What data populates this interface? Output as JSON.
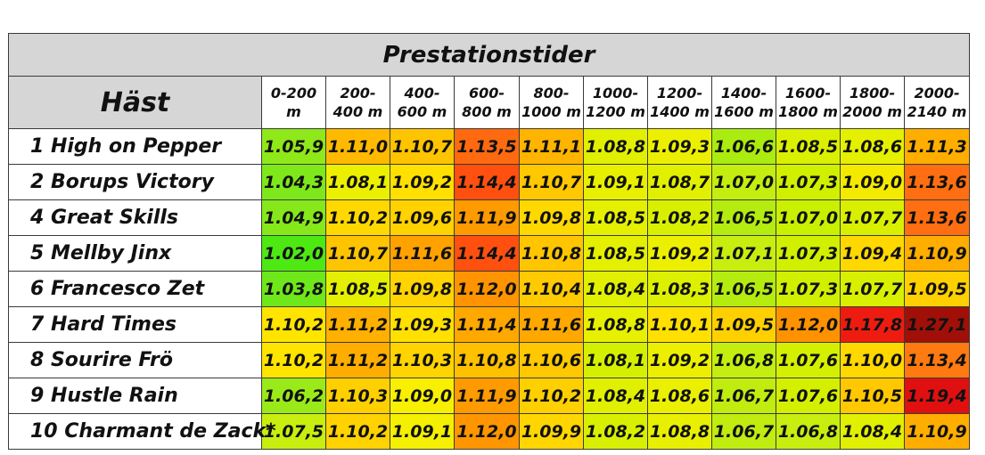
{
  "title": "Prestationstider",
  "horse_header": "Häst",
  "segments": [
    [
      "0-200",
      "m"
    ],
    [
      "200-",
      "400 m"
    ],
    [
      "400-",
      "600 m"
    ],
    [
      "600-",
      "800 m"
    ],
    [
      "800-",
      "1000 m"
    ],
    [
      "1000-",
      "1200 m"
    ],
    [
      "1200-",
      "1400 m"
    ],
    [
      "1400-",
      "1600 m"
    ],
    [
      "1600-",
      "1800 m"
    ],
    [
      "1800-",
      "2000 m"
    ],
    [
      "2000-",
      "2140 m"
    ]
  ],
  "rows": [
    {
      "horse": "1 High on Pepper",
      "times": [
        "1.05,9",
        "1.11,0",
        "1.10,7",
        "1.13,5",
        "1.11,1",
        "1.08,8",
        "1.09,3",
        "1.06,6",
        "1.08,5",
        "1.08,6",
        "1.11,3"
      ]
    },
    {
      "horse": "2 Borups Victory",
      "times": [
        "1.04,3",
        "1.08,1",
        "1.09,2",
        "1.14,4",
        "1.10,7",
        "1.09,1",
        "1.08,7",
        "1.07,0",
        "1.07,3",
        "1.09,0",
        "1.13,6"
      ]
    },
    {
      "horse": "4 Great Skills",
      "times": [
        "1.04,9",
        "1.10,2",
        "1.09,6",
        "1.11,9",
        "1.09,8",
        "1.08,5",
        "1.08,2",
        "1.06,5",
        "1.07,0",
        "1.07,7",
        "1.13,6"
      ]
    },
    {
      "horse": "5 Mellby Jinx",
      "times": [
        "1.02,0",
        "1.10,7",
        "1.11,6",
        "1.14,4",
        "1.10,8",
        "1.08,5",
        "1.09,2",
        "1.07,1",
        "1.07,3",
        "1.09,4",
        "1.10,9"
      ]
    },
    {
      "horse": "6 Francesco Zet",
      "times": [
        "1.03,8",
        "1.08,5",
        "1.09,8",
        "1.12,0",
        "1.10,4",
        "1.08,4",
        "1.08,3",
        "1.06,5",
        "1.07,3",
        "1.07,7",
        "1.09,5"
      ]
    },
    {
      "horse": "7 Hard Times",
      "times": [
        "1.10,2",
        "1.11,2",
        "1.09,3",
        "1.11,4",
        "1.11,6",
        "1.08,8",
        "1.10,1",
        "1.09,5",
        "1.12,0",
        "1.17,8",
        "1.27,1"
      ]
    },
    {
      "horse": "8 Sourire Frö",
      "times": [
        "1.10,2",
        "1.11,2",
        "1.10,3",
        "1.10,8",
        "1.10,6",
        "1.08,1",
        "1.09,2",
        "1.06,8",
        "1.07,6",
        "1.10,0",
        "1.13,4"
      ]
    },
    {
      "horse": "9 Hustle Rain",
      "times": [
        "1.06,2",
        "1.10,3",
        "1.09,0",
        "1.11,9",
        "1.10,2",
        "1.08,4",
        "1.08,6",
        "1.06,7",
        "1.07,6",
        "1.10,5",
        "1.19,4"
      ]
    },
    {
      "horse": "10 Charmant de Zack*",
      "times": [
        "1.07,5",
        "1.10,2",
        "1.09,1",
        "1.12,0",
        "1.09,9",
        "1.08,2",
        "1.08,8",
        "1.06,7",
        "1.06,8",
        "1.08,4",
        "1.10,9"
      ]
    }
  ],
  "cell_colors": [
    [
      "#8fe81a",
      "#ffba00",
      "#ffc400",
      "#ff6a10",
      "#ffb400",
      "#e0f000",
      "#ecf000",
      "#aaec10",
      "#daf000",
      "#e4f000",
      "#ffae00"
    ],
    [
      "#7ee81a",
      "#ecf000",
      "#ffe000",
      "#ff5010",
      "#ffc800",
      "#e8f000",
      "#e0f000",
      "#c4ee10",
      "#d0f000",
      "#f4ea00",
      "#ff6e10"
    ],
    [
      "#86e81a",
      "#ffd800",
      "#ffd200",
      "#ff9a00",
      "#ffd800",
      "#e4f000",
      "#d8f000",
      "#b4ec10",
      "#c8f000",
      "#d8f000",
      "#ff6e10"
    ],
    [
      "#4ee812",
      "#ffc400",
      "#ffa200",
      "#ff5010",
      "#ffc600",
      "#e4f000",
      "#ecf000",
      "#c8ee10",
      "#d0f000",
      "#ffd800",
      "#ffae00"
    ],
    [
      "#6ee81a",
      "#e4f000",
      "#ffd400",
      "#ff9400",
      "#ffca00",
      "#e0f000",
      "#dcf000",
      "#b4ec10",
      "#d0f000",
      "#d8f000",
      "#ffd000"
    ],
    [
      "#ffe400",
      "#ffb000",
      "#ffe000",
      "#ffa800",
      "#ffa800",
      "#e6f000",
      "#ffe000",
      "#ffd000",
      "#ff9200",
      "#ee1c10",
      "#a01008"
    ],
    [
      "#ffe400",
      "#ffae00",
      "#ffd400",
      "#ffc000",
      "#ffc800",
      "#d4f000",
      "#ecf000",
      "#c4ee10",
      "#d4f000",
      "#ffd800",
      "#ff7a10"
    ],
    [
      "#9aea1a",
      "#ffd000",
      "#f8f000",
      "#ff9a00",
      "#ffd000",
      "#e0f000",
      "#eaf000",
      "#c0ec10",
      "#d4f000",
      "#ffc800",
      "#e01010"
    ],
    [
      "#c8ee10",
      "#ffd200",
      "#f4f000",
      "#ff9600",
      "#ffd600",
      "#d8f000",
      "#e8f000",
      "#c0ec10",
      "#c8ee10",
      "#e0f000",
      "#ffae00"
    ]
  ]
}
